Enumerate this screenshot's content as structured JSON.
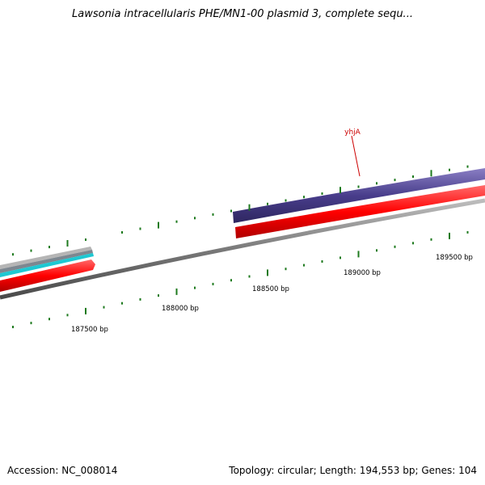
{
  "title": "Lawsonia intracellularis PHE/MN1-00 plasmid 3, complete sequ...",
  "accession": "Accession: NC_008014",
  "topology": "Topology: circular; Length: 194,553 bp; Genes: 104",
  "gene_label": "yhjA",
  "position_labels": [
    "187500 bp",
    "188000 bp",
    "188500 bp",
    "189000 bp",
    "189500 bp"
  ],
  "colors": {
    "backbone": "#808080",
    "forward_cds": "#ff0000",
    "reverse_cds": "#483d8b",
    "feature_cyan": "#1ec8d2",
    "ticks": "#1e7a1e",
    "gene_label": "#cc0000"
  }
}
